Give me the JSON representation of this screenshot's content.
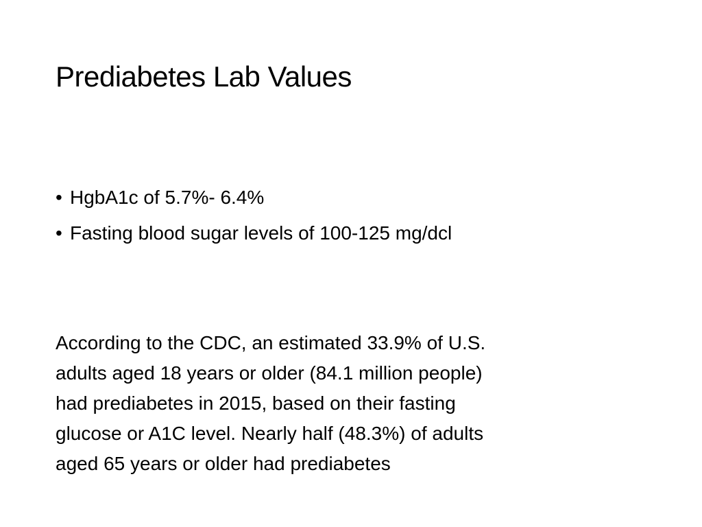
{
  "slide": {
    "title": "Prediabetes Lab Values",
    "bullets": [
      "HgbA1c of 5.7%- 6.4%",
      "Fasting blood sugar levels of 100-125 mg/dcl"
    ],
    "paragraph_lines": [
      "According to the CDC, an estimated 33.9% of U.S.",
      "adults aged 18 years or older (84.1 million people)",
      "had prediabetes in 2015, based on their fasting",
      "glucose or A1C level. Nearly half (48.3%) of adults",
      "aged 65 years or older had prediabetes"
    ],
    "bullet_symbol": "•"
  }
}
